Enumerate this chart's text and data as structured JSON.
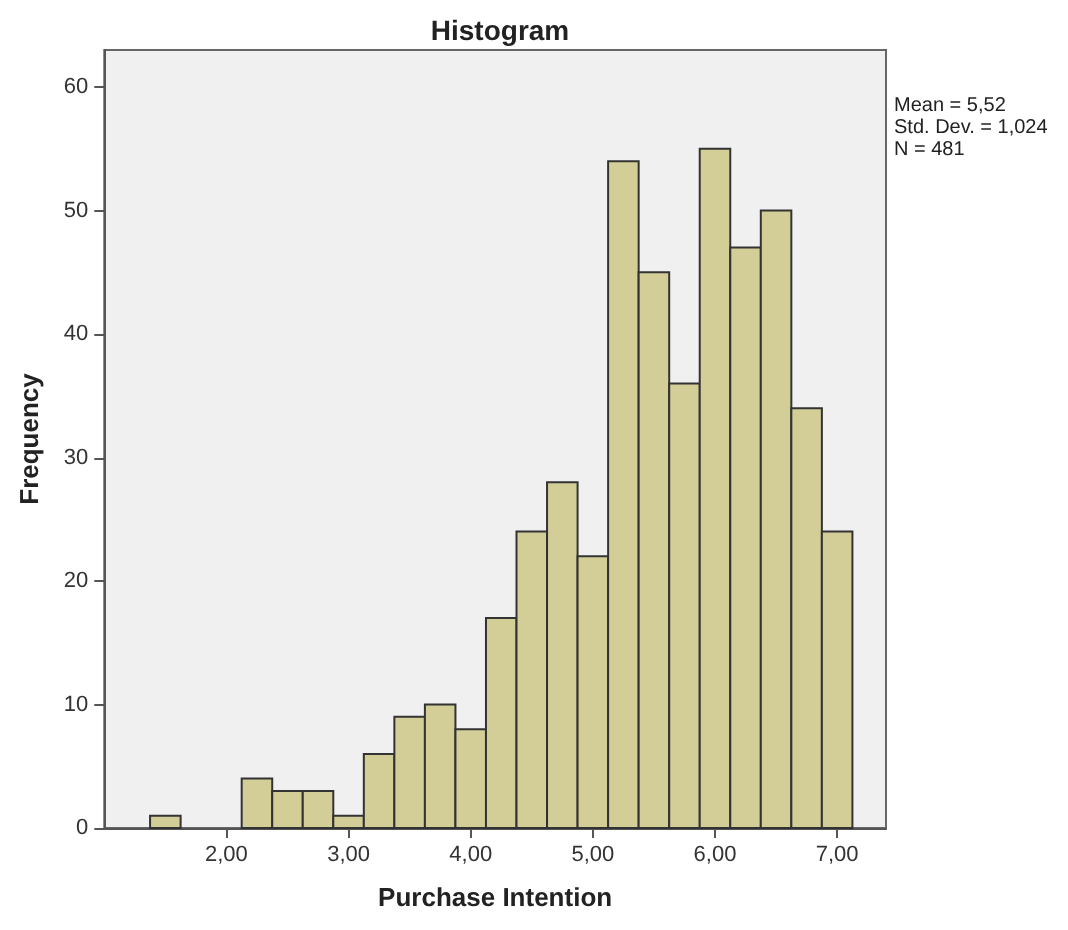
{
  "chart_data": {
    "type": "histogram",
    "title": "Histogram",
    "xlabel": "Purchase Intention",
    "ylabel": "Frequency",
    "bins": [
      1.375,
      1.625,
      1.875,
      2.125,
      2.375,
      2.625,
      2.875,
      3.125,
      3.375,
      3.625,
      3.875,
      4.125,
      4.375,
      4.625,
      4.875,
      5.125,
      5.375,
      5.625,
      5.875,
      6.125,
      6.375,
      6.625,
      6.875,
      7.125
    ],
    "values": [
      1,
      0,
      0,
      4,
      3,
      3,
      1,
      6,
      9,
      10,
      8,
      17,
      24,
      28,
      22,
      54,
      45,
      36,
      55,
      47,
      50,
      34,
      24
    ],
    "color": "#d3ce97",
    "xlim": [
      1,
      7.4
    ],
    "ylim": [
      0,
      63
    ],
    "xticks": [
      {
        "value": 2,
        "label": "2,00"
      },
      {
        "value": 3,
        "label": "3,00"
      },
      {
        "value": 4,
        "label": "4,00"
      },
      {
        "value": 5,
        "label": "5,00"
      },
      {
        "value": 6,
        "label": "6,00"
      },
      {
        "value": 7,
        "label": "7,00"
      }
    ],
    "yticks": [
      0,
      10,
      20,
      30,
      40,
      50,
      60
    ],
    "grid": false,
    "annotations": [
      "Mean = 5,52",
      "Std. Dev. = 1,024",
      "N = 481"
    ]
  }
}
